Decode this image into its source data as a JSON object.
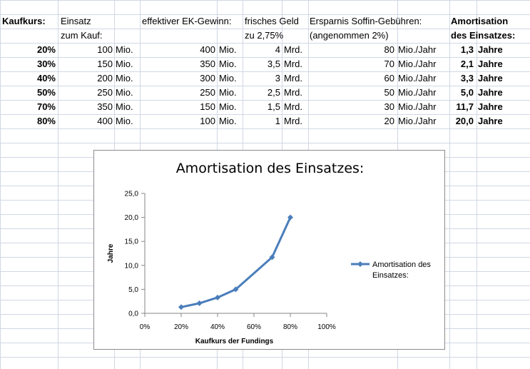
{
  "header": {
    "kaufkurs": "Kaufkurs:",
    "einsatz_1": "Einsatz",
    "einsatz_2": "zum Kauf:",
    "ek_gewinn": "effektiver EK-Gewinn:",
    "frisches_geld_1": "frisches Geld",
    "frisches_geld_2": "zu 2,75%",
    "ersparnis_1": "Ersparnis Soffin-Gebühren:",
    "ersparnis_2": "(angenommen 2%)",
    "amortisation_1": "Amortisation",
    "amortisation_2": "des Einsatzes:"
  },
  "rows": [
    {
      "kaufkurs": "20%",
      "einsatz": "100",
      "einsatz_unit": "Mio.",
      "ek": "400",
      "ek_unit": "Mio.",
      "geld": "4",
      "geld_unit": "Mrd.",
      "ersparnis": "80",
      "ersparnis_unit": "Mio./Jahr",
      "amort": "1,3",
      "amort_unit": "Jahre"
    },
    {
      "kaufkurs": "30%",
      "einsatz": "150",
      "einsatz_unit": "Mio.",
      "ek": "350",
      "ek_unit": "Mio.",
      "geld": "3,5",
      "geld_unit": "Mrd.",
      "ersparnis": "70",
      "ersparnis_unit": "Mio./Jahr",
      "amort": "2,1",
      "amort_unit": "Jahre"
    },
    {
      "kaufkurs": "40%",
      "einsatz": "200",
      "einsatz_unit": "Mio.",
      "ek": "300",
      "ek_unit": "Mio.",
      "geld": "3",
      "geld_unit": "Mrd.",
      "ersparnis": "60",
      "ersparnis_unit": "Mio./Jahr",
      "amort": "3,3",
      "amort_unit": "Jahre"
    },
    {
      "kaufkurs": "50%",
      "einsatz": "250",
      "einsatz_unit": "Mio.",
      "ek": "250",
      "ek_unit": "Mio.",
      "geld": "2,5",
      "geld_unit": "Mrd.",
      "ersparnis": "50",
      "ersparnis_unit": "Mio./Jahr",
      "amort": "5,0",
      "amort_unit": "Jahre"
    },
    {
      "kaufkurs": "70%",
      "einsatz": "350",
      "einsatz_unit": "Mio.",
      "ek": "150",
      "ek_unit": "Mio.",
      "geld": "1,5",
      "geld_unit": "Mrd.",
      "ersparnis": "30",
      "ersparnis_unit": "Mio./Jahr",
      "amort": "11,7",
      "amort_unit": "Jahre"
    },
    {
      "kaufkurs": "80%",
      "einsatz": "400",
      "einsatz_unit": "Mio.",
      "ek": "100",
      "ek_unit": "Mio.",
      "geld": "1",
      "geld_unit": "Mrd.",
      "ersparnis": "20",
      "ersparnis_unit": "Mio./Jahr",
      "amort": "20,0",
      "amort_unit": "Jahre"
    }
  ],
  "colors": {
    "gridline": "#d0d7e5",
    "series": "#4a7ebb",
    "chart_border": "#8c8c8c",
    "plot_axis": "#868686"
  },
  "chart_data": {
    "type": "line",
    "title": "Amortisation des Einsatzes:",
    "xlabel": "Kaufkurs  der Fundings",
    "ylabel": "Jahre",
    "xlim": [
      0,
      1
    ],
    "ylim": [
      0,
      25
    ],
    "x_ticks": [
      "0%",
      "20%",
      "40%",
      "60%",
      "80%",
      "100%"
    ],
    "y_ticks": [
      "0,0",
      "5,0",
      "10,0",
      "15,0",
      "20,0",
      "25,0"
    ],
    "grid": "horizontal",
    "legend_position": "right",
    "series": [
      {
        "name": "Amortisation des Einsatzes:",
        "x": [
          0.2,
          0.3,
          0.4,
          0.5,
          0.7,
          0.8
        ],
        "y": [
          1.3,
          2.1,
          3.3,
          5.0,
          11.7,
          20.0
        ],
        "marker": "diamond"
      }
    ]
  }
}
